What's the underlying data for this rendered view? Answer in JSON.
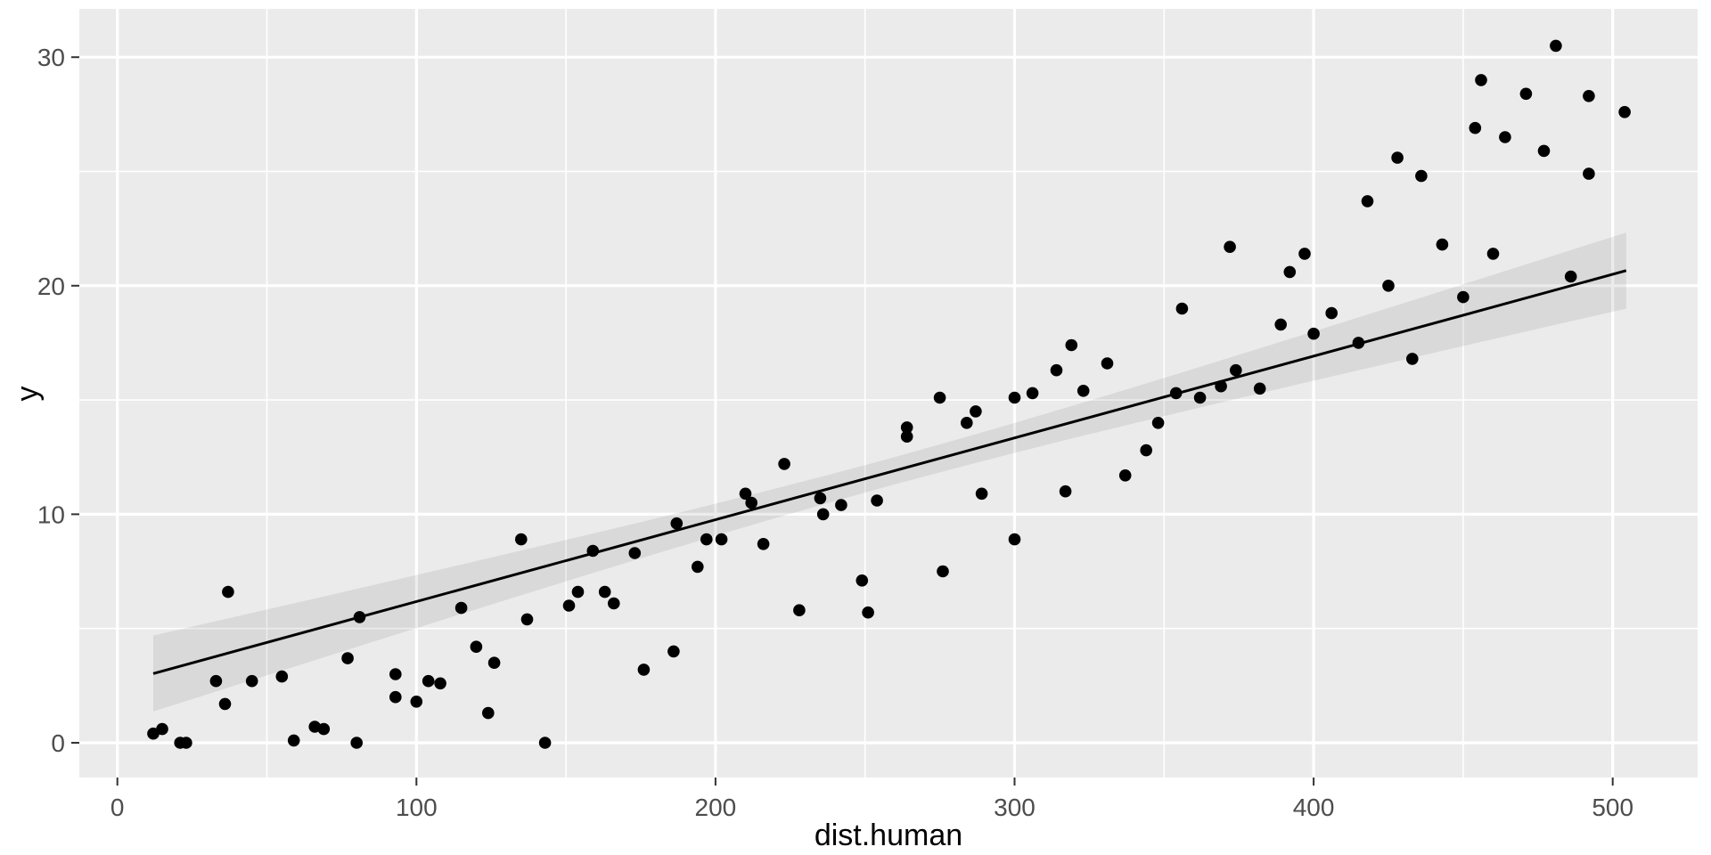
{
  "figure": {
    "background_color": "#FFFFFF",
    "panel_background_color": "#EBEBEB",
    "grid_major_color": "#FFFFFF",
    "grid_minor_color": "#FFFFFF",
    "point_color": "#000000",
    "smooth_line_color": "#000000",
    "ribbon_color": "#000000",
    "ribbon_opacity": 0.075,
    "tick_mark_color": "#333333",
    "tick_label_color": "#4D4D4D",
    "axis_title_color": "#000000"
  },
  "chart_data": {
    "type": "scatter",
    "title": "",
    "xlabel": "dist.human",
    "ylabel": "y",
    "x_ticks": [
      0,
      100,
      200,
      300,
      400,
      500
    ],
    "x_minor_ticks": [
      50,
      150,
      250,
      350,
      450
    ],
    "y_ticks": [
      0,
      10,
      20,
      30
    ],
    "y_minor_ticks": [
      5,
      15,
      25
    ],
    "xlim": [
      -12.6,
      528.4
    ],
    "ylim": [
      -1.55,
      32.1
    ],
    "grid": true,
    "legend_position": "none",
    "n_points": 99,
    "points": [
      [
        481,
        30.5
      ],
      [
        456,
        29.0
      ],
      [
        471,
        28.4
      ],
      [
        492,
        28.3
      ],
      [
        504,
        27.6
      ],
      [
        454,
        26.9
      ],
      [
        464,
        26.5
      ],
      [
        477,
        25.9
      ],
      [
        428,
        25.6
      ],
      [
        436,
        24.8
      ],
      [
        492,
        24.9
      ],
      [
        418,
        23.7
      ],
      [
        443,
        21.8
      ],
      [
        397,
        21.4
      ],
      [
        460,
        21.4
      ],
      [
        392,
        20.6
      ],
      [
        425,
        20.0
      ],
      [
        406,
        18.8
      ],
      [
        450,
        19.5
      ],
      [
        486,
        20.4
      ],
      [
        400,
        17.9
      ],
      [
        415,
        17.5
      ],
      [
        433,
        16.8
      ],
      [
        372,
        21.7
      ],
      [
        356,
        19.0
      ],
      [
        389,
        18.3
      ],
      [
        319,
        17.4
      ],
      [
        331,
        16.6
      ],
      [
        314,
        16.3
      ],
      [
        275,
        15.1
      ],
      [
        300,
        15.1
      ],
      [
        306,
        15.3
      ],
      [
        323,
        15.4
      ],
      [
        354,
        15.3
      ],
      [
        287,
        14.5
      ],
      [
        284,
        14.0
      ],
      [
        362,
        15.1
      ],
      [
        369,
        15.6
      ],
      [
        374,
        16.3
      ],
      [
        382,
        15.5
      ],
      [
        264,
        13.8
      ],
      [
        264,
        13.4
      ],
      [
        348,
        14.0
      ],
      [
        254,
        10.6
      ],
      [
        289,
        10.9
      ],
      [
        317,
        11.0
      ],
      [
        337,
        11.7
      ],
      [
        344,
        12.8
      ],
      [
        300,
        8.9
      ],
      [
        276,
        7.5
      ],
      [
        249,
        7.1
      ],
      [
        251,
        5.7
      ],
      [
        135,
        8.9
      ],
      [
        115,
        5.9
      ],
      [
        137,
        5.4
      ],
      [
        159,
        8.4
      ],
      [
        151,
        6.0
      ],
      [
        154,
        6.6
      ],
      [
        163,
        6.6
      ],
      [
        166,
        6.1
      ],
      [
        173,
        8.3
      ],
      [
        187,
        9.6
      ],
      [
        194,
        7.7
      ],
      [
        197,
        8.9
      ],
      [
        202,
        8.9
      ],
      [
        210,
        10.9
      ],
      [
        212,
        10.5
      ],
      [
        216,
        8.7
      ],
      [
        223,
        12.2
      ],
      [
        228,
        5.8
      ],
      [
        235,
        10.7
      ],
      [
        236,
        10.0
      ],
      [
        242,
        10.4
      ],
      [
        120,
        4.2
      ],
      [
        126,
        3.5
      ],
      [
        108,
        2.6
      ],
      [
        124,
        1.3
      ],
      [
        143,
        0.0
      ],
      [
        176,
        3.2
      ],
      [
        186,
        4.0
      ],
      [
        37,
        6.6
      ],
      [
        81,
        5.5
      ],
      [
        33,
        2.7
      ],
      [
        45,
        2.7
      ],
      [
        55,
        2.9
      ],
      [
        36,
        1.7
      ],
      [
        77,
        3.7
      ],
      [
        93,
        3.0
      ],
      [
        93,
        2.0
      ],
      [
        100,
        1.8
      ],
      [
        12,
        0.4
      ],
      [
        15,
        0.6
      ],
      [
        21,
        0.0
      ],
      [
        23,
        0.0
      ],
      [
        59,
        0.1
      ],
      [
        66,
        0.7
      ],
      [
        69,
        0.6
      ],
      [
        80,
        0.0
      ],
      [
        104,
        2.7
      ]
    ],
    "smooth": {
      "method": "lm",
      "x_start": 12,
      "x_end": 504.5,
      "intercept": 2.6,
      "slope": 0.0358,
      "ribbon": {
        "half_width_at_center": 0.6,
        "center_x": 258,
        "spread_coef": 0.0063
      }
    }
  }
}
